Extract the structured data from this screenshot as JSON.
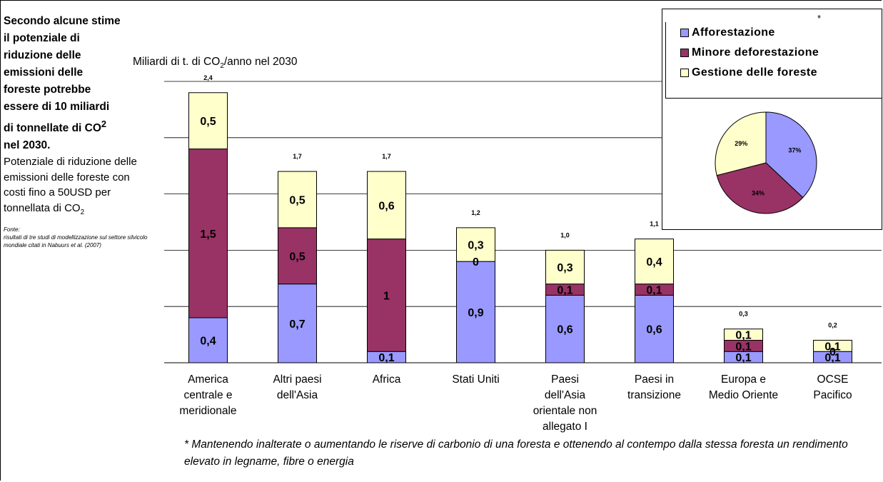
{
  "sidebar": {
    "heading_lines": [
      "Secondo alcune stime",
      "il potenziale di",
      "riduzione delle",
      "emissioni delle",
      "foreste potrebbe",
      "essere di 10 miliardi",
      "di tonnellate di CO"
    ],
    "heading_sup": "2",
    "heading_last": "nel 2030.",
    "desc": "Potenziale di riduzione delle emissioni delle foreste con costi fino a 50USD per tonnellata di CO",
    "desc_sub": "2",
    "source_label": "Fonte:",
    "source_text": "risultati di tre studi di modellizzazione sul settore silvicolo mondiale citati in Nabuurs et al. (2007)"
  },
  "unit_label": {
    "before": "Miliardi di t. di CO",
    "sub": "2",
    "after": "/anno nel 2030"
  },
  "footnote": "* Mantenendo inalterate o aumentando le riserve di carbonio di una foresta e ottenendo al contempo dalla stessa foresta un rendimento elevato in legname, fibre o energia",
  "legend": {
    "star": "*",
    "items": [
      {
        "label": "Afforestazione",
        "color": "#9999ff"
      },
      {
        "label": "Minore deforestazione",
        "color": "#993366"
      },
      {
        "label": "Gestione delle foreste",
        "color": "#ffffcc"
      }
    ]
  },
  "chart_data": [
    {
      "type": "bar",
      "stacked": true,
      "categories": [
        [
          "America",
          "centrale e",
          "meridionale"
        ],
        [
          "Altri paesi",
          "dell'Asia"
        ],
        [
          "Africa"
        ],
        [
          "Stati Uniti"
        ],
        [
          "Paesi",
          "dell'Asia",
          "orientale non",
          "allegato I"
        ],
        [
          "Paesi in",
          "transizione"
        ],
        [
          "Europa e",
          "Medio Oriente"
        ],
        [
          "OCSE",
          "Pacifico"
        ]
      ],
      "totals": [
        "2,4",
        "1,7",
        "1,7",
        "1,2",
        "1,0",
        "1,1",
        "0,3",
        "0,2"
      ],
      "series": [
        {
          "name": "Afforestazione",
          "color": "#9999ff",
          "values": [
            0.4,
            0.7,
            0.1,
            0.9,
            0.6,
            0.6,
            0.1,
            0.1
          ],
          "labels": [
            "0,4",
            "0,7",
            "0,1",
            "0,9",
            "0,6",
            "0,6",
            "0,1",
            "0,1"
          ]
        },
        {
          "name": "Minore deforestazione",
          "color": "#993366",
          "values": [
            1.5,
            0.5,
            1,
            0,
            0.1,
            0.1,
            0.1,
            0
          ],
          "labels": [
            "1,5",
            "0,5",
            "1",
            "0",
            "0,1",
            "0,1",
            "0,1",
            "0"
          ]
        },
        {
          "name": "Gestione delle foreste",
          "color": "#ffffcc",
          "values": [
            0.5,
            0.5,
            0.6,
            0.3,
            0.3,
            0.4,
            0.1,
            0.1
          ],
          "labels": [
            "0,5",
            "0,5",
            "0,6",
            "0,3",
            "0,3",
            "0,4",
            "0,1",
            "0,1"
          ]
        }
      ],
      "ylim": [
        0,
        2.5
      ],
      "grid": true
    },
    {
      "type": "pie",
      "labels": [
        "Afforestazione",
        "Minore deforestazione",
        "Gestione delle foreste"
      ],
      "values": [
        37,
        34,
        29
      ],
      "value_labels": [
        "37%",
        "34%",
        "29%"
      ],
      "colors": [
        "#9999ff",
        "#993366",
        "#ffffcc"
      ]
    }
  ]
}
